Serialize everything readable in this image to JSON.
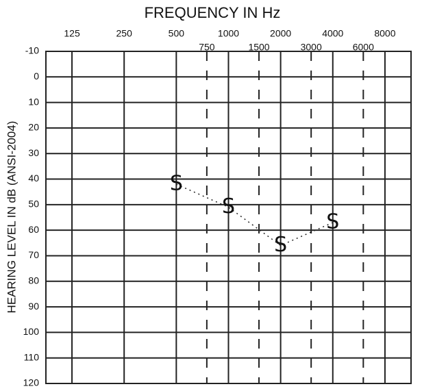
{
  "chart_data": {
    "type": "line",
    "title": "FREQUENCY IN Hz",
    "y_label": "HEARING LEVEL IN dB (ANSI-2004)",
    "xscale": "log",
    "xlim": [
      88.4,
      11314
    ],
    "xticks": [
      125,
      250,
      500,
      750,
      1000,
      1500,
      2000,
      3000,
      4000,
      6000,
      8000
    ],
    "ylim": [
      -10,
      120
    ],
    "yticks": [
      -10,
      0,
      10,
      20,
      30,
      40,
      50,
      60,
      70,
      80,
      90,
      100,
      110,
      120
    ],
    "y_inverted": true,
    "grid": true,
    "series": [
      {
        "marker": "S",
        "color": "#222222",
        "x": [
          500,
          1000,
          2000,
          4000
        ],
        "values": [
          42,
          51,
          66,
          57
        ]
      }
    ]
  }
}
